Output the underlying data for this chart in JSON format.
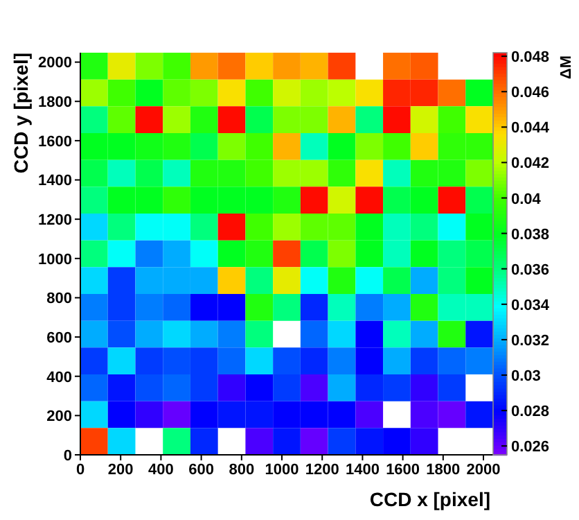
{
  "chart_data": {
    "type": "heatmap",
    "xlabel": "CCD x [pixel]",
    "ylabel": "CCD y [pixel]",
    "clabel": "ΔM",
    "xlim": [
      0,
      2048
    ],
    "xticks": [
      0,
      200,
      400,
      600,
      800,
      1000,
      1200,
      1400,
      1600,
      1800,
      2000
    ],
    "ylim": [
      0,
      2048
    ],
    "yticks": [
      0,
      200,
      400,
      600,
      800,
      1000,
      1200,
      1400,
      1600,
      1800,
      2000
    ],
    "clim": [
      0.0255,
      0.0482
    ],
    "cticks": [
      0.026,
      0.028,
      0.03,
      0.032,
      0.034,
      0.036,
      0.038,
      0.04,
      0.042,
      0.044,
      0.046,
      0.048
    ],
    "cells": [
      [
        0.039,
        0.043,
        0.041,
        0.04,
        0.045,
        0.046,
        0.044,
        0.045,
        0.0445,
        0.047,
        null,
        0.046,
        0.0465,
        null,
        null
      ],
      [
        0.0415,
        0.04,
        0.038,
        0.0405,
        0.041,
        0.0435,
        0.04,
        0.0425,
        0.0415,
        0.042,
        0.0435,
        0.0475,
        0.0475,
        0.046,
        0.038
      ],
      [
        0.036,
        0.0405,
        0.048,
        0.0415,
        0.039,
        0.048,
        0.037,
        0.041,
        0.041,
        0.0445,
        0.036,
        0.048,
        0.0425,
        0.04,
        0.0435
      ],
      [
        0.038,
        0.038,
        0.0385,
        0.039,
        0.037,
        0.041,
        0.04,
        0.0445,
        0.035,
        0.038,
        0.041,
        0.04,
        0.044,
        0.0395,
        0.0395
      ],
      [
        0.037,
        0.035,
        0.037,
        0.035,
        0.039,
        0.039,
        0.04,
        0.0415,
        0.0415,
        0.0395,
        0.0435,
        0.035,
        0.039,
        0.039,
        0.041
      ],
      [
        0.036,
        0.038,
        0.038,
        0.0395,
        0.038,
        0.038,
        0.038,
        0.039,
        0.048,
        0.0425,
        0.048,
        0.037,
        0.038,
        0.048,
        0.037
      ],
      [
        0.033,
        0.036,
        0.034,
        0.034,
        0.036,
        0.048,
        0.04,
        0.0415,
        0.0405,
        0.0405,
        0.038,
        0.035,
        0.036,
        0.034,
        0.038
      ],
      [
        0.036,
        0.034,
        0.031,
        0.032,
        0.034,
        0.038,
        0.039,
        0.047,
        0.037,
        0.041,
        0.038,
        0.035,
        0.038,
        0.036,
        0.037
      ],
      [
        0.033,
        0.0295,
        0.032,
        0.032,
        0.032,
        0.044,
        0.036,
        0.043,
        0.034,
        0.039,
        0.034,
        0.037,
        0.032,
        0.036,
        0.038
      ],
      [
        0.031,
        0.0295,
        0.031,
        0.0305,
        0.028,
        0.028,
        0.039,
        0.036,
        0.029,
        0.035,
        0.031,
        0.032,
        0.039,
        0.035,
        0.035
      ],
      [
        0.032,
        0.03,
        0.032,
        0.033,
        0.032,
        0.031,
        0.036,
        null,
        0.0305,
        0.033,
        0.028,
        0.035,
        0.032,
        0.039,
        0.0285
      ],
      [
        0.0295,
        0.033,
        0.0295,
        0.03,
        0.0295,
        0.0305,
        0.033,
        0.03,
        0.029,
        0.031,
        0.028,
        0.032,
        0.0295,
        0.0305,
        0.031
      ],
      [
        0.0305,
        0.0285,
        0.03,
        0.0305,
        0.0295,
        0.027,
        0.028,
        0.0295,
        0.0265,
        0.032,
        0.029,
        0.0295,
        0.027,
        0.0295,
        null
      ],
      [
        0.033,
        0.028,
        0.027,
        0.026,
        0.028,
        0.0285,
        0.0285,
        0.028,
        0.028,
        0.028,
        0.0265,
        null,
        0.0265,
        0.026,
        0.0285
      ],
      [
        0.047,
        0.033,
        null,
        0.036,
        0.029,
        null,
        0.0265,
        0.0285,
        0.026,
        0.0295,
        0.0285,
        0.028,
        0.027,
        null,
        null
      ]
    ]
  }
}
